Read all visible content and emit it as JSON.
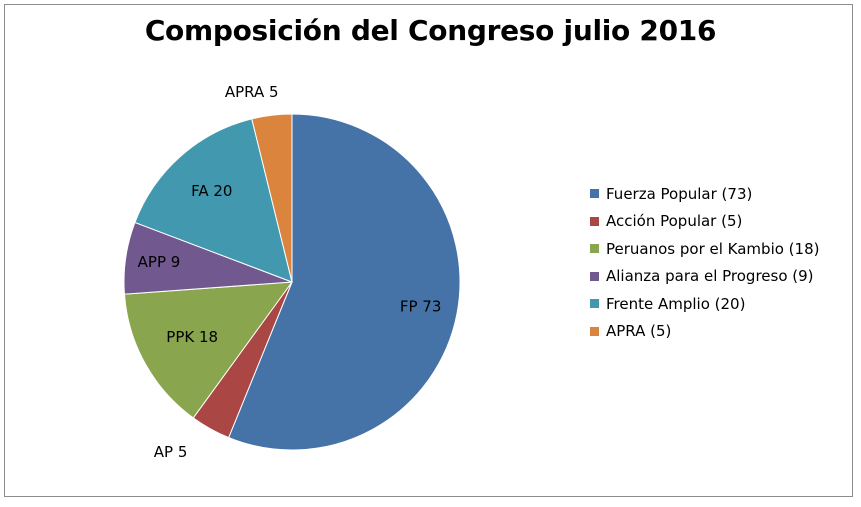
{
  "chart_data": {
    "type": "pie",
    "title": "Composición del Congreso julio 2016",
    "slices": [
      {
        "label": "FP 73",
        "legend": "Fuerza Popular (73)",
        "value": 73,
        "color": "#4572A7"
      },
      {
        "label": "AP 5",
        "legend": "Acción Popular (5)",
        "value": 5,
        "color": "#AA4643"
      },
      {
        "label": "PPK 18",
        "legend": "Peruanos por el Kambio (18)",
        "value": 18,
        "color": "#89A54E"
      },
      {
        "label": "APP 9",
        "legend": "Alianza para el Progreso (9)",
        "value": 9,
        "color": "#71588F"
      },
      {
        "label": "FA 20",
        "legend": "Frente Amplio (20)",
        "value": 20,
        "color": "#4198AF"
      },
      {
        "label": "APRA 5",
        "legend": "APRA (5)",
        "value": 5,
        "color": "#DB843D"
      }
    ],
    "legend_position": "right"
  }
}
